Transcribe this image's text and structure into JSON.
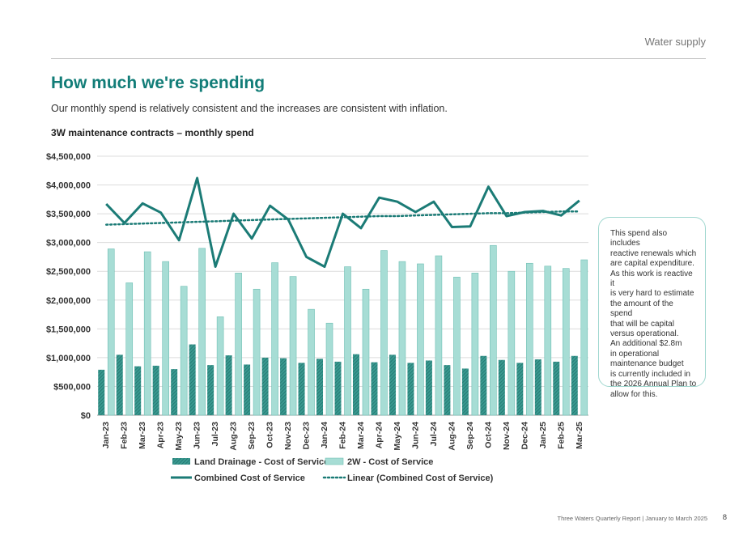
{
  "header": {
    "section": "Water supply"
  },
  "page": {
    "title": "How much we're spending",
    "subtitle": "Our monthly spend is relatively consistent and the increases are consistent with inflation."
  },
  "callout": {
    "lines": [
      "This spend also includes",
      "reactive renewals which",
      "are capital expenditure.",
      "As this work is reactive it",
      "is very hard to estimate",
      "the amount of the spend",
      "that will be capital",
      "versus operational.",
      "An additional $2.8m",
      "in operational",
      "maintenance budget",
      "is currently included in",
      "the 2026 Annual Plan to",
      "allow for this."
    ]
  },
  "footer": {
    "report": "Three Waters Quarterly Report | January to March 2025",
    "page_number": "8"
  },
  "chart_data": {
    "type": "bar",
    "title": "3W maintenance contracts – monthly spend",
    "xlabel": "",
    "ylabel": "",
    "ylim": [
      0,
      4500000
    ],
    "yticks": [
      0,
      500000,
      1000000,
      1500000,
      2000000,
      2500000,
      3000000,
      3500000,
      4000000,
      4500000
    ],
    "ytick_labels": [
      "$0",
      "$500,000",
      "$1,000,000",
      "$1,500,000",
      "$2,000,000",
      "$2,500,000",
      "$3,000,000",
      "$3,500,000",
      "$4,000,000",
      "$4,500,000"
    ],
    "grid": "horizontal",
    "legend_position": "bottom",
    "categories": [
      "Jan-23",
      "Feb-23",
      "Mar-23",
      "Apr-23",
      "May-23",
      "Jun-23",
      "Jul-23",
      "Aug-23",
      "Sep-23",
      "Oct-23",
      "Nov-23",
      "Dec-23",
      "Jan-24",
      "Feb-24",
      "Mar-24",
      "Apr-24",
      "May-24",
      "Jun-24",
      "Jul-24",
      "Aug-24",
      "Sep-24",
      "Oct-24",
      "Nov-24",
      "Dec-24",
      "Jan-25",
      "Feb-25",
      "Mar-25"
    ],
    "series": [
      {
        "name": "Land Drainage - Cost of Service",
        "type": "bar",
        "color": "#2e8b82",
        "values": [
          790000,
          1050000,
          850000,
          860000,
          800000,
          1230000,
          870000,
          1040000,
          880000,
          1000000,
          990000,
          910000,
          980000,
          930000,
          1060000,
          920000,
          1050000,
          910000,
          950000,
          870000,
          810000,
          1030000,
          960000,
          910000,
          970000,
          930000,
          1030000
        ]
      },
      {
        "name": "2W - Cost of Service",
        "type": "bar",
        "color": "#a7ddd5",
        "values": [
          2890000,
          2300000,
          2840000,
          2670000,
          2240000,
          2900000,
          1710000,
          2470000,
          2190000,
          2650000,
          2410000,
          1840000,
          1600000,
          2580000,
          2190000,
          2860000,
          2670000,
          2630000,
          2770000,
          2400000,
          2470000,
          2950000,
          2500000,
          2640000,
          2590000,
          2550000,
          2700000
        ]
      },
      {
        "name": "Combined Cost of Service",
        "type": "line",
        "color": "#1b7b76",
        "values": [
          3670000,
          3340000,
          3680000,
          3520000,
          3040000,
          4120000,
          2580000,
          3500000,
          3070000,
          3640000,
          3400000,
          2750000,
          2580000,
          3500000,
          3250000,
          3780000,
          3710000,
          3530000,
          3710000,
          3270000,
          3280000,
          3970000,
          3460000,
          3530000,
          3550000,
          3470000,
          3730000
        ]
      },
      {
        "name": "Linear (Combined Cost of Service)",
        "type": "trendline",
        "color": "#1b7b76",
        "values": [
          3310000,
          3320000,
          3330000,
          3340000,
          3350000,
          3360000,
          3370000,
          3380000,
          3390000,
          3400000,
          3410000,
          3420000,
          3430000,
          3440000,
          3450000,
          3460000,
          3460000,
          3470000,
          3480000,
          3490000,
          3500000,
          3510000,
          3510000,
          3520000,
          3530000,
          3540000,
          3540000
        ]
      }
    ]
  }
}
